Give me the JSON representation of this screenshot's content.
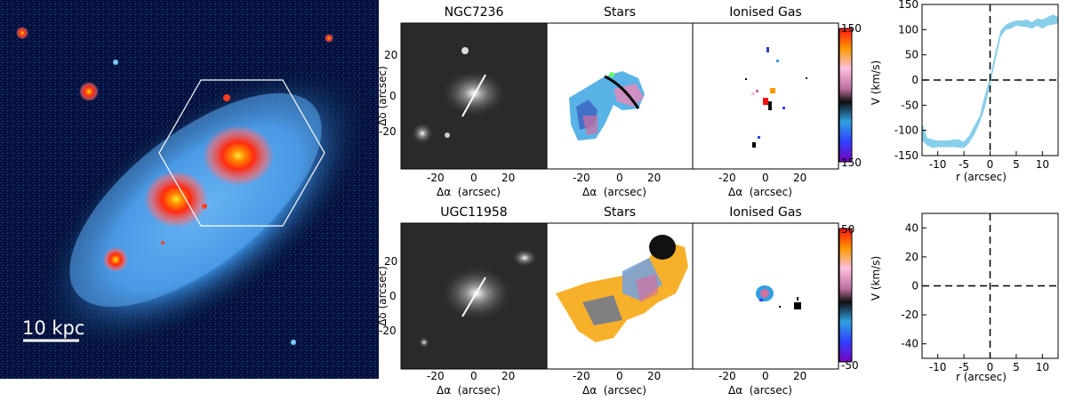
{
  "figure": {
    "main_image": {
      "scale_bar_label": "10 kpc"
    },
    "rows": [
      {
        "galaxy_name": "NGC7236",
        "stars_title": "Stars",
        "gas_title": "Ionised Gas",
        "colorbar_top": "150",
        "colorbar_bottom": "150"
      },
      {
        "galaxy_name": "UGC11958",
        "stars_title": "Stars",
        "gas_title": "Ionised Gas",
        "colorbar_top": "50",
        "colorbar_bottom": "-50"
      }
    ],
    "map_axes": {
      "xlabel": "Δα  (arcsec)",
      "ylabel": "Δδ  (arcsec)",
      "x_ticks": [
        "-20",
        "0",
        "20"
      ],
      "y_ticks": [
        "20",
        "0",
        "-20"
      ]
    },
    "velocity_axes": {
      "xlabel": "r (arcsec)",
      "ylabel": "V (km/s)",
      "x_ticks": [
        "-10",
        "-5",
        "0",
        "5",
        "10"
      ]
    }
  },
  "chart_data": [
    {
      "type": "area",
      "name": "NGC7236 rotation curve",
      "xlabel": "r (arcsec)",
      "ylabel": "V (km/s)",
      "xlim": [
        -13,
        13
      ],
      "ylim": [
        -150,
        150
      ],
      "y_ticks": [
        -150,
        -100,
        -50,
        0,
        50,
        100,
        150
      ],
      "x": [
        -13,
        -12,
        -11,
        -10,
        -9,
        -8,
        -7,
        -6,
        -5,
        -4,
        -3,
        -2,
        -1,
        0,
        1,
        2,
        3,
        4,
        5,
        6,
        7,
        8,
        9,
        10,
        11,
        12,
        13
      ],
      "y_upper": [
        -85,
        -115,
        -118,
        -120,
        -120,
        -120,
        -118,
        -118,
        -122,
        -110,
        -90,
        -72,
        -30,
        5,
        55,
        98,
        110,
        115,
        118,
        118,
        120,
        115,
        122,
        120,
        125,
        130,
        125
      ],
      "y_lower": [
        -120,
        -130,
        -135,
        -133,
        -133,
        -133,
        -133,
        -134,
        -135,
        -125,
        -108,
        -85,
        -55,
        -10,
        38,
        85,
        100,
        102,
        108,
        106,
        105,
        102,
        108,
        102,
        108,
        110,
        112
      ],
      "color": "#87ceeb",
      "reference_lines": {
        "x": 0,
        "y": 0,
        "style": "dashed"
      }
    },
    {
      "type": "line",
      "name": "UGC11958 rotation curve",
      "xlabel": "r (arcsec)",
      "ylabel": "V (km/s)",
      "xlim": [
        -13,
        13
      ],
      "ylim": [
        -50,
        50
      ],
      "y_ticks": [
        -40,
        -20,
        0,
        20,
        40
      ],
      "series": [],
      "reference_lines": {
        "x": 0,
        "y": 0,
        "style": "dashed"
      }
    }
  ]
}
